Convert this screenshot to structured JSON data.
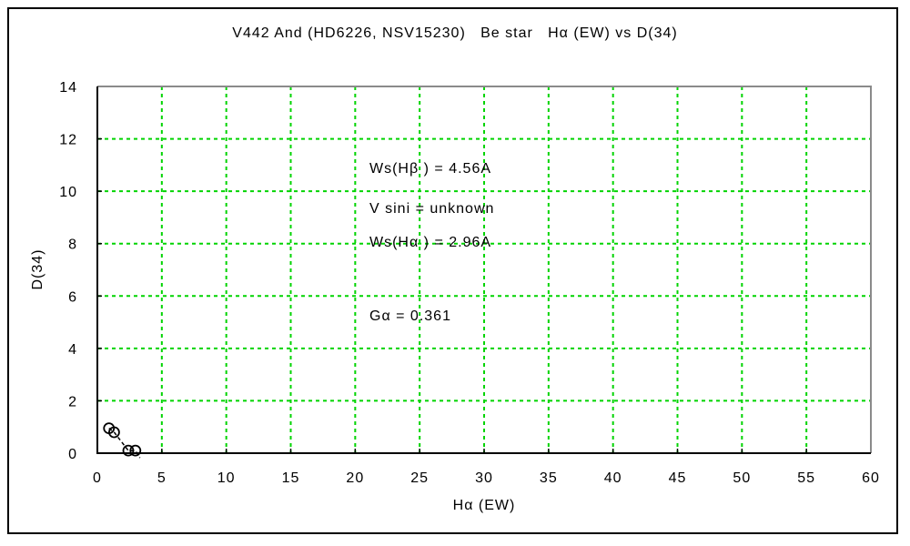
{
  "chart_data": {
    "type": "scatter",
    "title": "V442 And (HD6226, NSV15230)   Be star   Hα (EW) vs D(34)",
    "xlabel": "Hα (EW)",
    "ylabel": "D(34)",
    "xlim": [
      0,
      60
    ],
    "ylim": [
      0,
      14
    ],
    "xticks": [
      0,
      5,
      10,
      15,
      20,
      25,
      30,
      35,
      40,
      45,
      50,
      55,
      60
    ],
    "yticks": [
      0,
      2,
      4,
      6,
      8,
      10,
      12,
      14
    ],
    "grid": {
      "show": true,
      "style": "dashed",
      "color": "#00d400"
    },
    "frame": {
      "axis_color": "#000000",
      "box_color": "#8a8a8a"
    },
    "legend": "none",
    "series": [
      {
        "name": "observations",
        "marker": "open-circle",
        "color": "#000000",
        "points": [
          [
            0.9,
            0.95
          ],
          [
            1.3,
            0.8
          ],
          [
            2.4,
            0.1
          ],
          [
            2.95,
            0.1
          ]
        ]
      }
    ],
    "trend_line": {
      "style": "dashed",
      "color": "#000000",
      "points": [
        [
          0.9,
          0.95
        ],
        [
          1.3,
          0.8
        ],
        [
          2.4,
          0.1
        ],
        [
          2.95,
          0.1
        ],
        [
          3.3,
          -0.18
        ]
      ]
    },
    "annotations": [
      "Ws(Hβ ) = 4.56A",
      "Ws(Hα ) = 2.96A",
      "Gα = 0.361",
      "V sini = unknown"
    ]
  }
}
